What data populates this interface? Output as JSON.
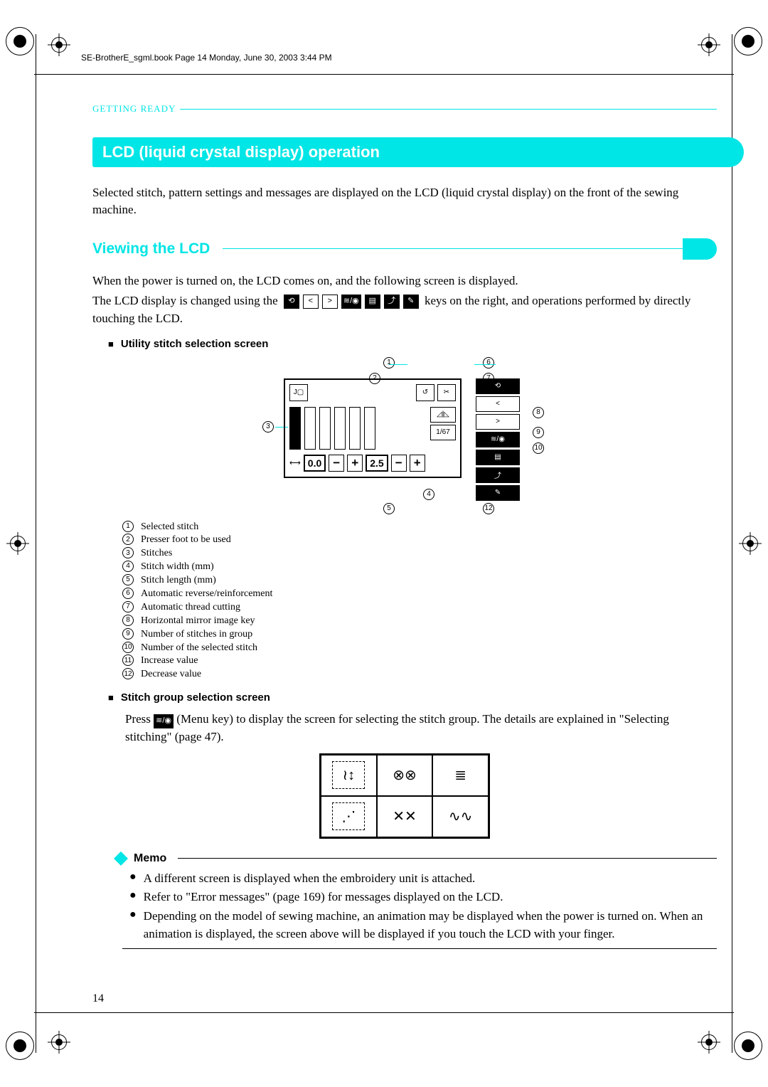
{
  "header_text": "SE-BrotherE_sgml.book  Page 14  Monday, June 30, 2003  3:44 PM",
  "section_label": "GETTING READY",
  "page_number": "14",
  "title_bar": "LCD (liquid crystal display) operation",
  "intro_text": "Selected stitch, pattern settings and messages are displayed on the LCD (liquid crystal display) on the front of the sewing machine.",
  "subheading": "Viewing the LCD",
  "para1": "When the power is turned on, the LCD comes on, and the following screen is displayed.",
  "para2a": "The LCD display is changed using the",
  "para2b": "keys on the right, and operations performed by directly touching the LCD.",
  "mini_head1": "Utility stitch selection screen",
  "mini_head2": "Stitch group selection screen",
  "stitch_group_para_a": "Press",
  "stitch_group_para_b": "(Menu key) to display the screen for selecting the stitch group. The details are explained in \"Selecting stitching\" (page 47).",
  "lcd_values": {
    "width": "0.0",
    "length": "2.5",
    "page": "1/67"
  },
  "inline_keys": [
    {
      "label": "⟲",
      "dark": true
    },
    {
      "label": "<",
      "dark": false
    },
    {
      "label": ">",
      "dark": false
    },
    {
      "label": "≋/◉",
      "dark": true
    },
    {
      "label": "▤",
      "dark": true
    },
    {
      "label": "⤴",
      "dark": true
    },
    {
      "label": "✎",
      "dark": true
    }
  ],
  "legend": [
    "Selected stitch",
    "Presser foot to be used",
    "Stitches",
    "Stitch width (mm)",
    "Stitch length (mm)",
    "Automatic reverse/reinforcement",
    "Automatic thread cutting",
    "Horizontal mirror image key",
    "Number of stitches in group",
    "Number of the selected stitch",
    "Increase value",
    "Decrease value"
  ],
  "memo_title": "Memo",
  "memo_items": [
    "A different screen is displayed when the embroidery unit is attached.",
    "Refer to \"Error messages\" (page 169) for messages displayed on the LCD.",
    "Depending on the model of sewing machine, an animation may be displayed when the power is turned on. When an animation is displayed, the screen above will be displayed if you touch the LCD with your finger."
  ],
  "colors": {
    "accent": "#00e5e5"
  }
}
